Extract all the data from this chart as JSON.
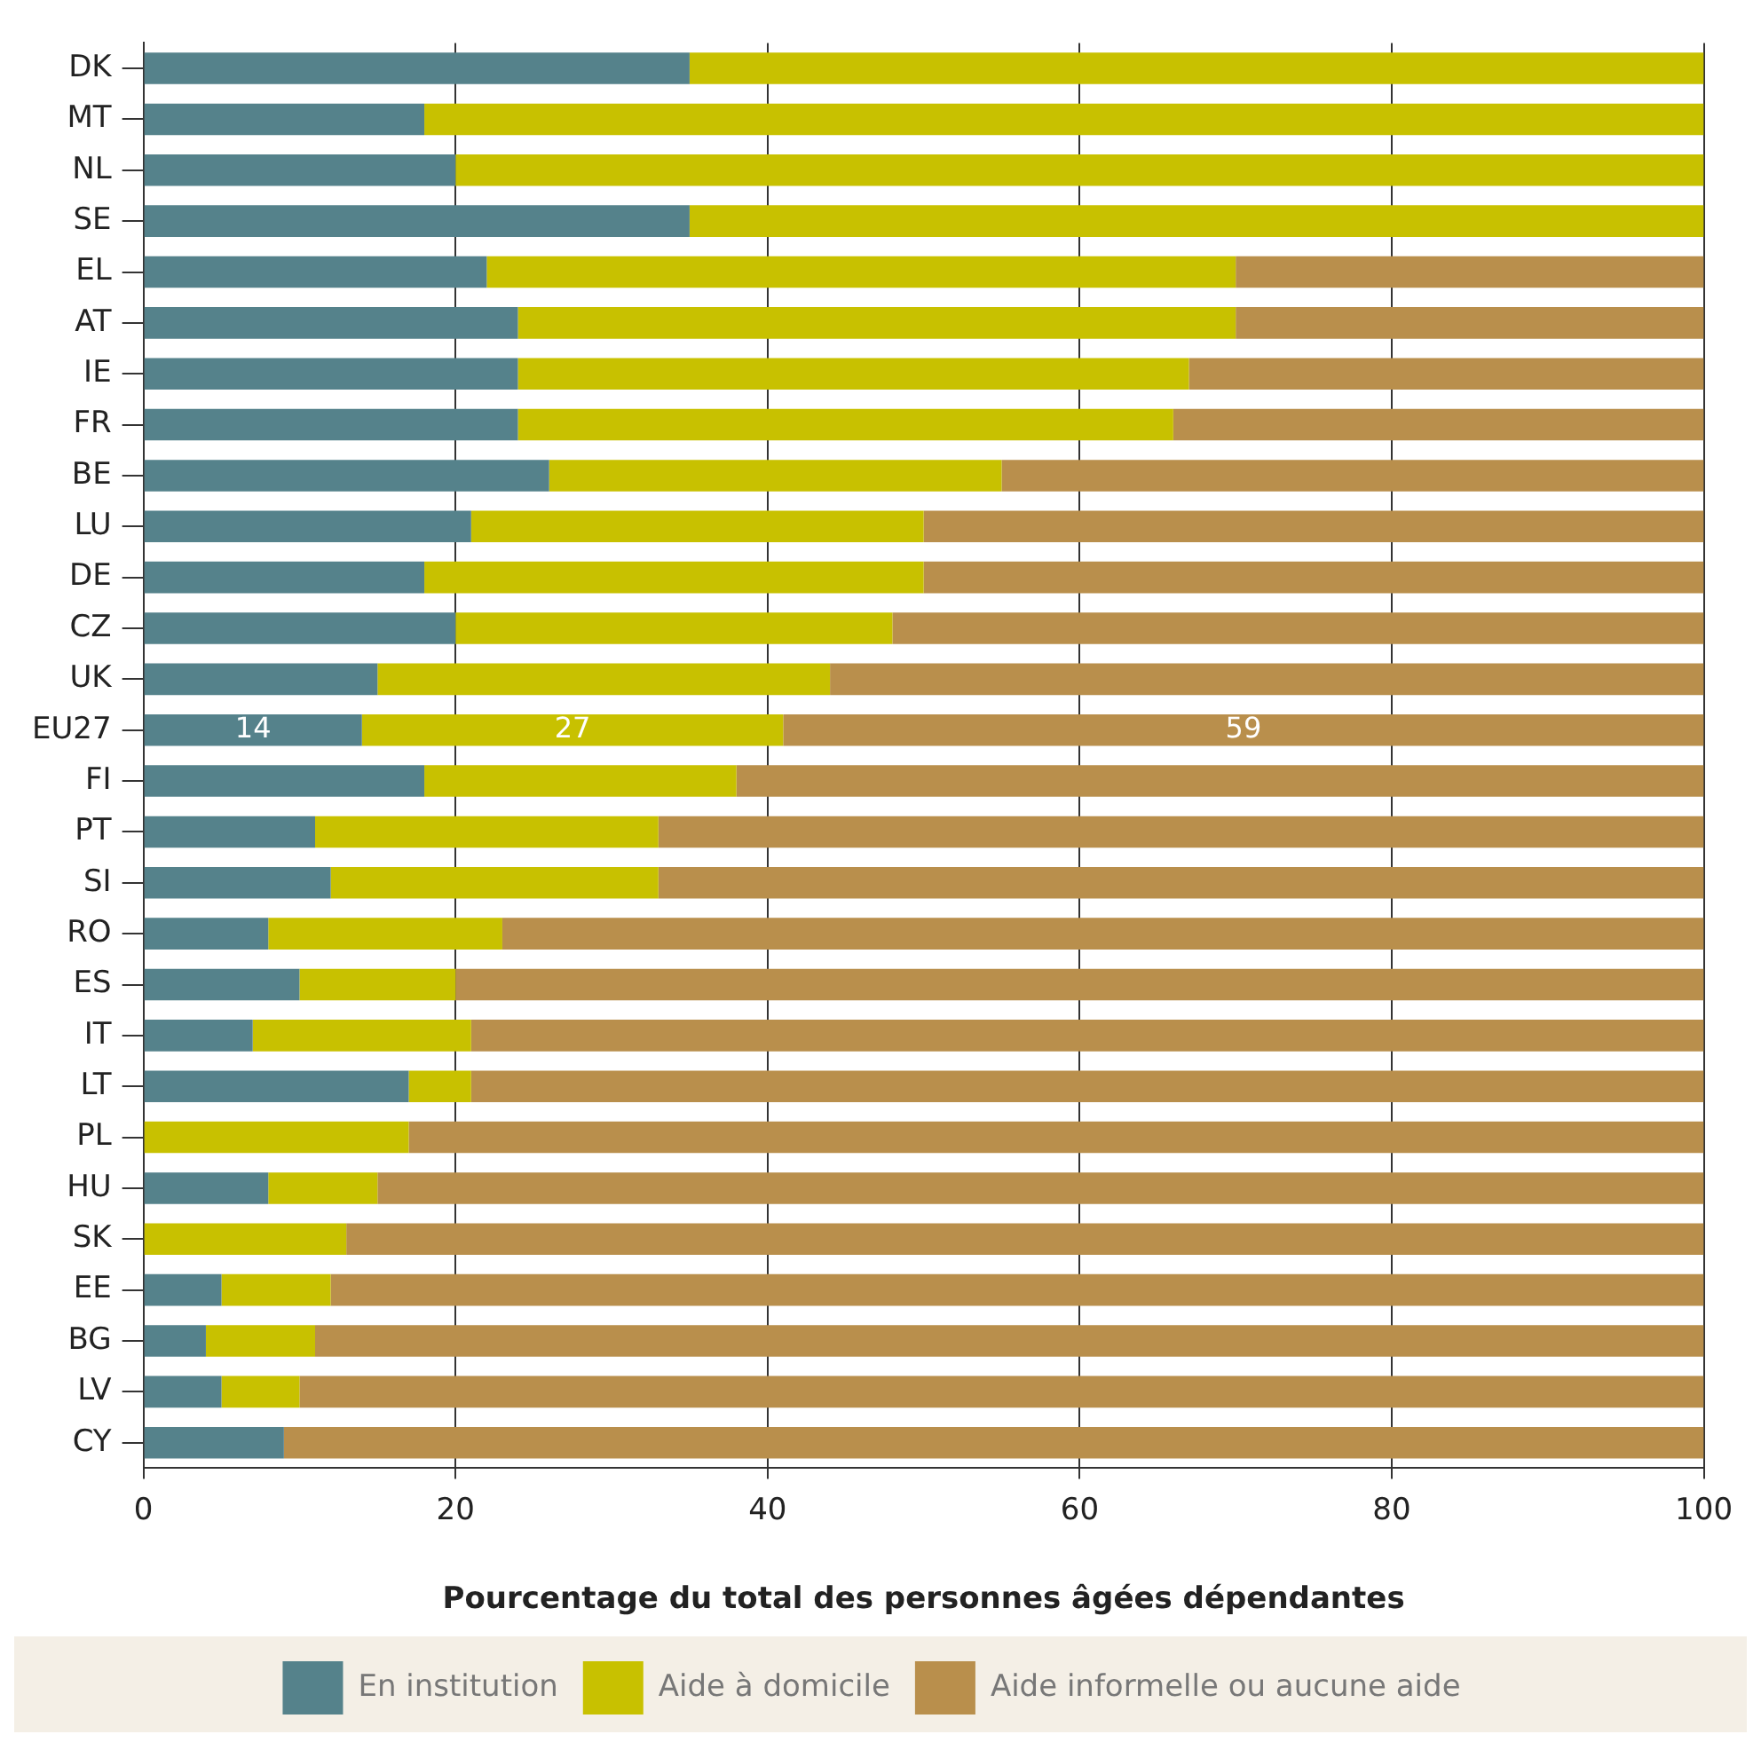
{
  "chart_data": {
    "type": "bar",
    "orientation": "horizontal",
    "stacked": true,
    "xlabel": "Pourcentage du total des personnes âgées dépendantes",
    "categories": [
      "DK",
      "MT",
      "NL",
      "SE",
      "EL",
      "AT",
      "IE",
      "FR",
      "BE",
      "LU",
      "DE",
      "CZ",
      "UK",
      "EU27",
      "FI",
      "PT",
      "SI",
      "RO",
      "ES",
      "IT",
      "LT",
      "PL",
      "HU",
      "SK",
      "EE",
      "BG",
      "LV",
      "CY"
    ],
    "series": [
      {
        "name": "En institution",
        "color": "#55828b",
        "values": [
          35,
          18,
          20,
          35,
          22,
          24,
          24,
          24,
          26,
          21,
          18,
          20,
          15,
          14,
          18,
          11,
          12,
          8,
          10,
          7,
          17,
          0,
          8,
          0,
          5,
          4,
          5,
          9
        ],
        "value_labels": [
          null,
          null,
          null,
          null,
          null,
          null,
          null,
          null,
          null,
          null,
          null,
          null,
          null,
          "14",
          null,
          null,
          null,
          null,
          null,
          null,
          null,
          null,
          null,
          null,
          null,
          null,
          null,
          null
        ]
      },
      {
        "name": "Aide à domicile",
        "color": "#c8c100",
        "values": [
          65,
          82,
          80,
          65,
          48,
          46,
          43,
          42,
          29,
          29,
          32,
          28,
          29,
          27,
          20,
          22,
          21,
          15,
          10,
          14,
          4,
          17,
          7,
          13,
          7,
          7,
          5,
          0
        ],
        "value_labels": [
          null,
          null,
          null,
          null,
          null,
          null,
          null,
          null,
          null,
          null,
          null,
          null,
          null,
          "27",
          null,
          null,
          null,
          null,
          null,
          null,
          null,
          null,
          null,
          null,
          null,
          null,
          null,
          null
        ]
      },
      {
        "name": "Aide informelle ou aucune aide",
        "color": "#b98f4c",
        "values": [
          0,
          0,
          0,
          0,
          30,
          30,
          33,
          34,
          45,
          50,
          50,
          52,
          56,
          59,
          62,
          67,
          67,
          77,
          80,
          79,
          79,
          83,
          85,
          87,
          88,
          89,
          90,
          91
        ],
        "value_labels": [
          null,
          null,
          null,
          null,
          null,
          null,
          null,
          null,
          null,
          null,
          null,
          null,
          null,
          "59",
          null,
          null,
          null,
          null,
          null,
          null,
          null,
          null,
          null,
          null,
          null,
          null,
          null,
          null
        ]
      }
    ],
    "xlim": [
      0,
      100
    ],
    "xticks": [
      0,
      20,
      40,
      60,
      80,
      100
    ],
    "grid": "x",
    "legend": "bottom"
  }
}
